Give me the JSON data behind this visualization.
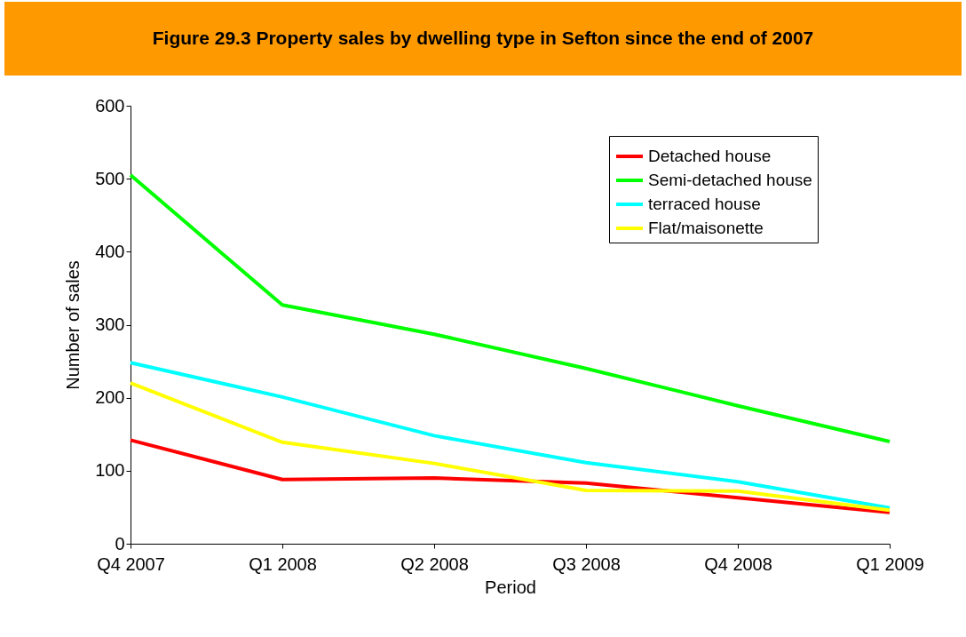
{
  "chart_data": {
    "type": "line",
    "title": "Figure 29.3 Property sales by dwelling type in Sefton since the end of 2007",
    "xlabel": "Period",
    "ylabel": "Number of sales",
    "categories": [
      "Q4 2007",
      "Q1 2008",
      "Q2 2008",
      "Q3 2008",
      "Q4 2008",
      "Q1 2009"
    ],
    "series": [
      {
        "name": "Detached house",
        "color": "#ff0000",
        "values": [
          142,
          88,
          90,
          83,
          63,
          43
        ]
      },
      {
        "name": "Semi-detached house",
        "color": "#00ff00",
        "values": [
          505,
          327,
          287,
          240,
          189,
          140
        ]
      },
      {
        "name": "terraced house",
        "color": "#00ffff",
        "values": [
          248,
          201,
          148,
          111,
          85,
          49
        ]
      },
      {
        "name": "Flat/maisonette",
        "color": "#ffff00",
        "values": [
          220,
          139,
          110,
          73,
          72,
          46
        ]
      }
    ],
    "ylim": [
      0,
      600
    ],
    "yticks": [
      0,
      100,
      200,
      300,
      400,
      500,
      600
    ],
    "grid": false,
    "legend": "top right",
    "marker": "none",
    "line_style": "solid"
  }
}
